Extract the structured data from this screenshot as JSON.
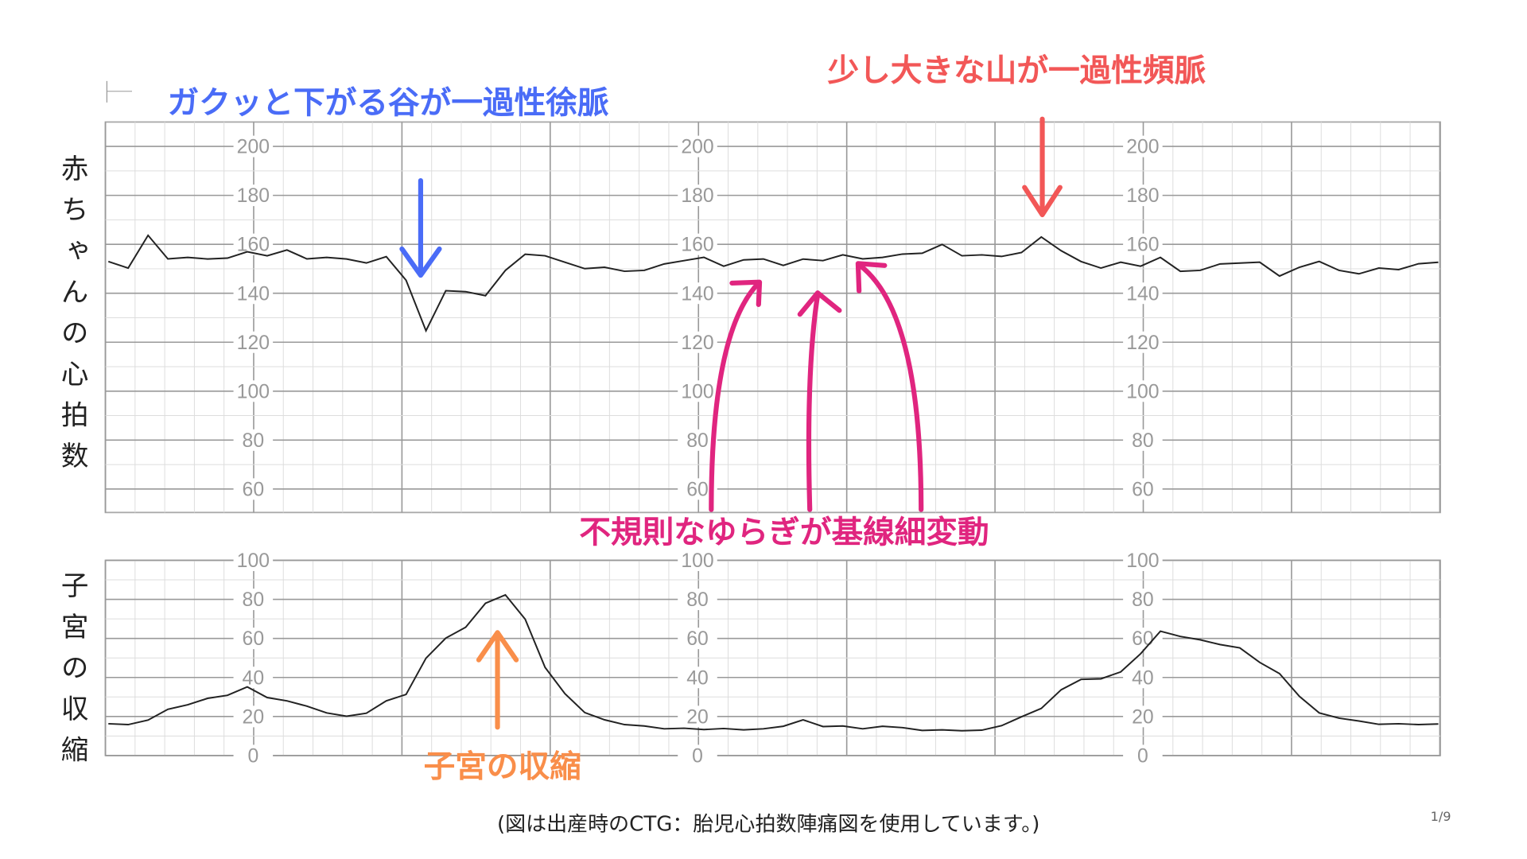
{
  "labels": {
    "heart_rate_axis": "赤ちゃんの心拍数",
    "contraction_axis": "子宮の収縮",
    "footer": "(図は出産時のCTG：胎児心拍数陣痛図を使用しています。)",
    "page": "1/9",
    "logo": "CTG"
  },
  "annotations": {
    "deceleration": {
      "text": "ガクッと下がる谷が一過性徐脈",
      "color": "#4a6cf7"
    },
    "acceleration": {
      "text": "少し大きな山が一過性頻脈",
      "color": "#f25757"
    },
    "variability": {
      "text": "不規則なゆらぎが基線細変動",
      "color": "#e0257f"
    },
    "contraction": {
      "text": "子宮の収縮",
      "color": "#f98e4a"
    }
  },
  "chart_data": [
    {
      "type": "line",
      "ylabel": "赤ちゃんの心拍数",
      "ylim": [
        55,
        210
      ],
      "yticks": [
        60,
        80,
        100,
        120,
        140,
        160,
        180,
        200
      ],
      "grid": true,
      "line_color": "#222222",
      "values": [
        152,
        150,
        164,
        155,
        154,
        154,
        155,
        156,
        155,
        158,
        155,
        154,
        154,
        153,
        154,
        145,
        125,
        142,
        140,
        139,
        150,
        155,
        155,
        153,
        151,
        150,
        149,
        150,
        151,
        153,
        155,
        152,
        153,
        154,
        152,
        153,
        153,
        156,
        155,
        154,
        156,
        157,
        159,
        155,
        156,
        156,
        156,
        163,
        158,
        152,
        150,
        153,
        152,
        154,
        149,
        150,
        151,
        152,
        153,
        148,
        150,
        153,
        150,
        147,
        150,
        150,
        153,
        152
      ]
    },
    {
      "type": "line",
      "ylabel": "子宮の収縮",
      "ylim": [
        0,
        100
      ],
      "yticks": [
        0,
        20,
        40,
        60,
        80,
        100
      ],
      "grid": true,
      "line_color": "#222222",
      "values": [
        16,
        16,
        18,
        24,
        26,
        29,
        31,
        35,
        30,
        28,
        25,
        22,
        20,
        22,
        28,
        31,
        50,
        60,
        66,
        78,
        82,
        70,
        45,
        32,
        22,
        18,
        16,
        15,
        14,
        14,
        13,
        14,
        13,
        14,
        15,
        18,
        15,
        15,
        14,
        15,
        14,
        13,
        13,
        13,
        13,
        15,
        20,
        24,
        34,
        39,
        39,
        43,
        52,
        64,
        61,
        59,
        57,
        55,
        48,
        42,
        30,
        22,
        19,
        18,
        16,
        16,
        16,
        16
      ]
    }
  ]
}
